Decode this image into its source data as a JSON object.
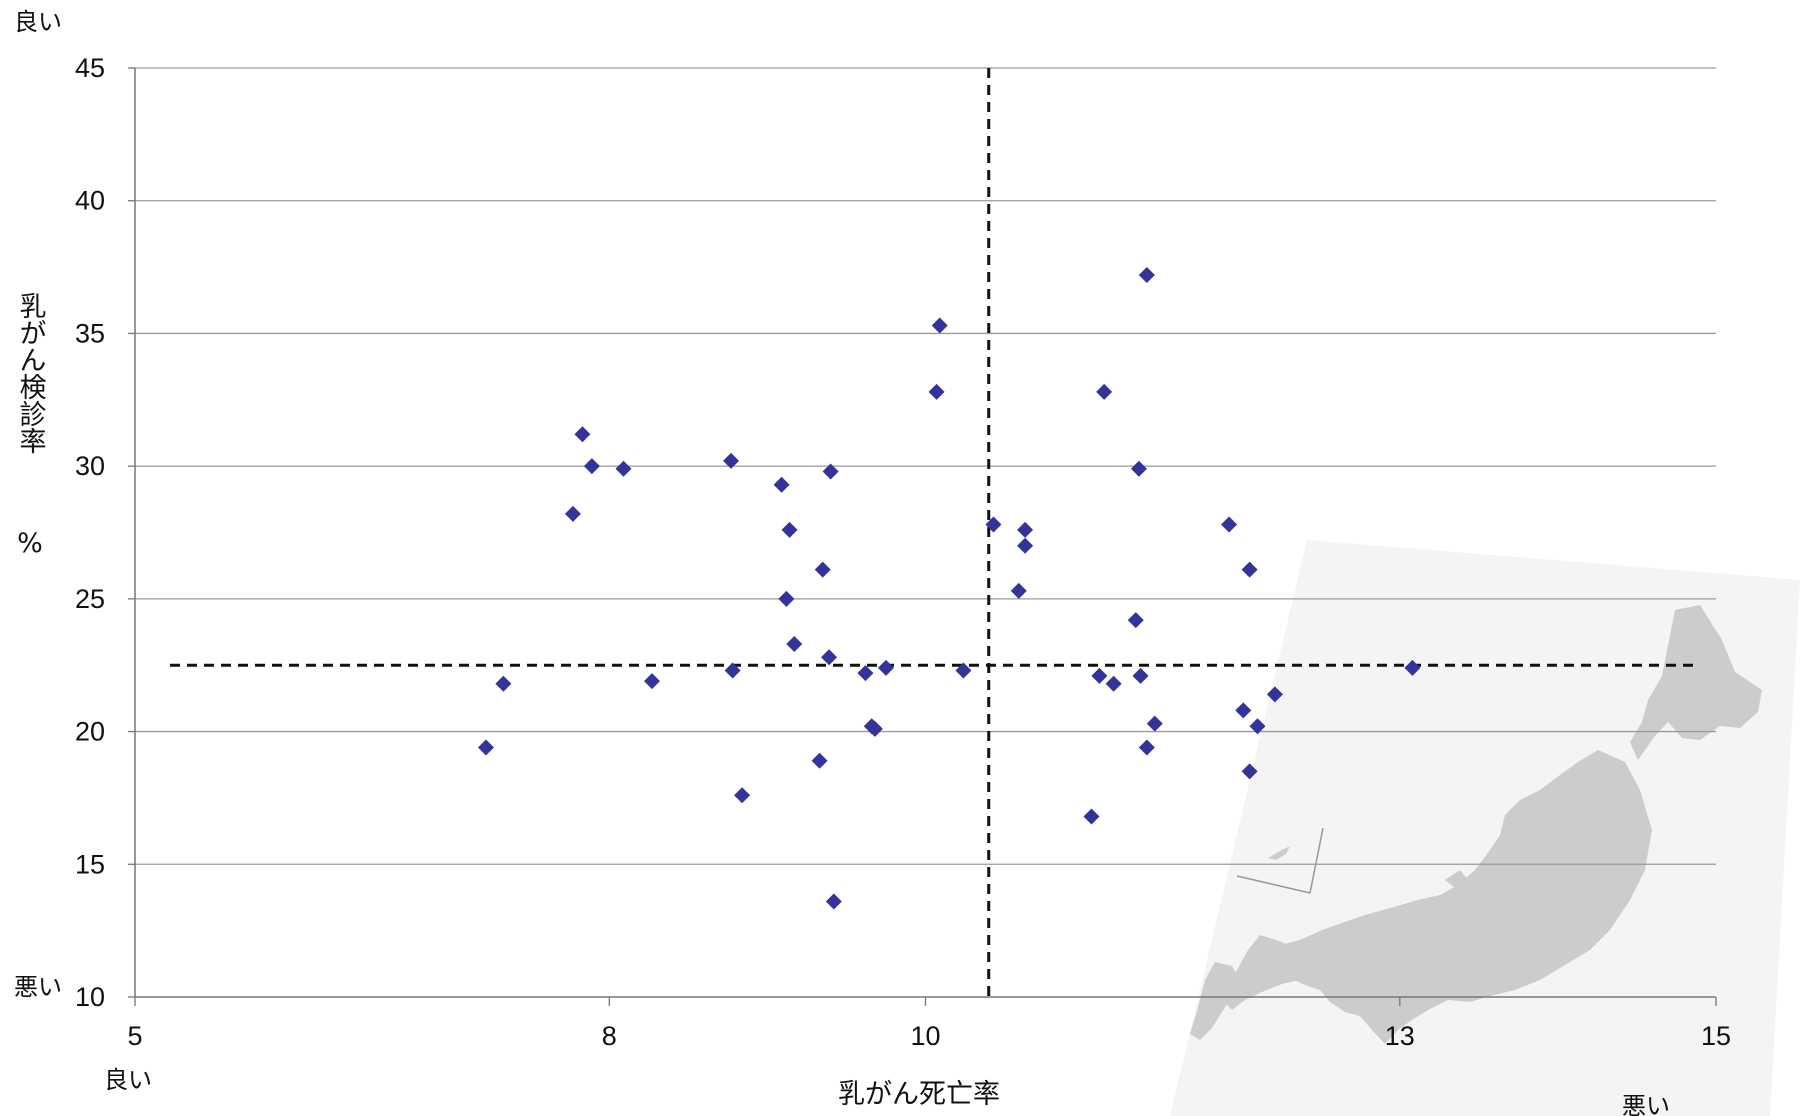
{
  "chart_data": {
    "type": "scatter",
    "xlabel": "乳がん死亡率",
    "ylabel": "乳がん検診率",
    "ylabel_unit": "%",
    "xlim": [
      5,
      15
    ],
    "ylim": [
      10,
      45
    ],
    "x_ticks": [
      "5",
      "8",
      "10",
      "13",
      "15"
    ],
    "y_ticks": [
      "10",
      "15",
      "20",
      "25",
      "30",
      "35",
      "40",
      "45"
    ],
    "grid": "horizontal",
    "reference_lines": {
      "x": 10.4,
      "y": 22.5
    },
    "corner_labels": {
      "y_top": "良い",
      "y_bottom": "悪い",
      "x_left": "良い",
      "x_right": "悪い"
    },
    "marker_color": "#33339a",
    "series": [
      {
        "points": [
          [
            7.22,
            19.4
          ],
          [
            7.33,
            21.8
          ],
          [
            7.77,
            28.2
          ],
          [
            7.83,
            31.2
          ],
          [
            7.89,
            30.0
          ],
          [
            8.09,
            29.9
          ],
          [
            8.27,
            21.9
          ],
          [
            8.77,
            30.2
          ],
          [
            8.78,
            22.3
          ],
          [
            8.84,
            17.6
          ],
          [
            9.09,
            29.3
          ],
          [
            9.12,
            25.0
          ],
          [
            9.14,
            27.6
          ],
          [
            9.17,
            23.3
          ],
          [
            9.33,
            18.9
          ],
          [
            9.35,
            26.1
          ],
          [
            9.39,
            22.8
          ],
          [
            9.4,
            29.8
          ],
          [
            9.42,
            13.6
          ],
          [
            9.62,
            22.2
          ],
          [
            9.66,
            20.2
          ],
          [
            9.68,
            20.1
          ],
          [
            9.75,
            22.4
          ],
          [
            10.07,
            32.8
          ],
          [
            10.09,
            35.3
          ],
          [
            10.24,
            22.3
          ],
          [
            10.43,
            27.8
          ],
          [
            10.59,
            25.3
          ],
          [
            10.63,
            27.6
          ],
          [
            10.63,
            27.0
          ],
          [
            11.05,
            16.8
          ],
          [
            11.1,
            22.1
          ],
          [
            11.13,
            32.8
          ],
          [
            11.19,
            21.8
          ],
          [
            11.33,
            24.2
          ],
          [
            11.35,
            29.9
          ],
          [
            11.36,
            22.1
          ],
          [
            11.4,
            37.2
          ],
          [
            11.4,
            19.4
          ],
          [
            11.45,
            20.3
          ],
          [
            11.92,
            27.8
          ],
          [
            12.01,
            20.8
          ],
          [
            12.05,
            26.1
          ],
          [
            12.05,
            18.5
          ],
          [
            12.1,
            20.2
          ],
          [
            12.21,
            21.4
          ],
          [
            13.08,
            22.4
          ]
        ]
      }
    ]
  }
}
